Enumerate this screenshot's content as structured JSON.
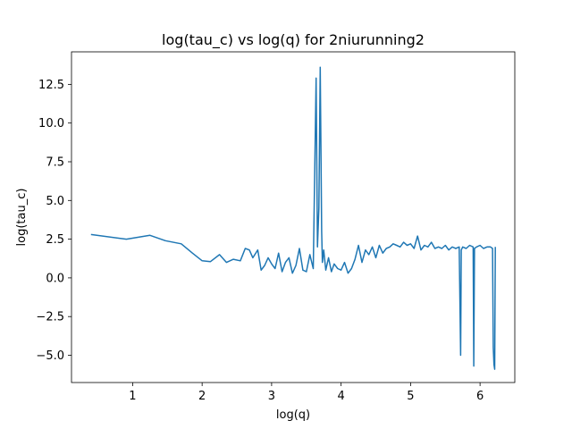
{
  "chart_data": {
    "type": "line",
    "title": "log(tau_c) vs log(q) for 2niurunning2",
    "xlabel": "log(q)",
    "ylabel": "log(tau_c)",
    "xlim": [
      0.12,
      6.5
    ],
    "ylim": [
      -6.76,
      14.6
    ],
    "xticks": [
      1,
      2,
      3,
      4,
      5,
      6
    ],
    "xtick_labels": [
      "1",
      "2",
      "3",
      "4",
      "5",
      "6"
    ],
    "yticks": [
      -5.0,
      -2.5,
      0.0,
      2.5,
      5.0,
      7.5,
      10.0,
      12.5
    ],
    "ytick_labels": [
      "−5.0",
      "−2.5",
      "0.0",
      "2.5",
      "5.0",
      "7.5",
      "10.0",
      "12.5"
    ],
    "grid": false,
    "legend": "none",
    "series": [
      {
        "color": "#1f77b4",
        "x": [
          0.4,
          0.91,
          1.25,
          1.47,
          1.7,
          1.86,
          2.0,
          2.12,
          2.25,
          2.35,
          2.45,
          2.55,
          2.62,
          2.68,
          2.73,
          2.8,
          2.85,
          2.9,
          2.95,
          3.0,
          3.05,
          3.1,
          3.15,
          3.2,
          3.25,
          3.3,
          3.35,
          3.4,
          3.45,
          3.5,
          3.55,
          3.6,
          3.64,
          3.66,
          3.68,
          3.7,
          3.72,
          3.73,
          3.75,
          3.78,
          3.82,
          3.86,
          3.9,
          3.95,
          4.0,
          4.05,
          4.1,
          4.15,
          4.2,
          4.25,
          4.3,
          4.35,
          4.4,
          4.45,
          4.5,
          4.55,
          4.6,
          4.65,
          4.7,
          4.75,
          4.8,
          4.85,
          4.9,
          4.95,
          5.0,
          5.05,
          5.1,
          5.15,
          5.2,
          5.25,
          5.3,
          5.35,
          5.4,
          5.45,
          5.5,
          5.55,
          5.6,
          5.65,
          5.7,
          5.72,
          5.73,
          5.75,
          5.8,
          5.85,
          5.9,
          5.91,
          5.92,
          5.95,
          6.0,
          6.05,
          6.1,
          6.15,
          6.18,
          6.19,
          6.2,
          6.21,
          6.22
        ],
        "y": [
          2.8,
          2.5,
          2.75,
          2.4,
          2.2,
          1.6,
          1.1,
          1.05,
          1.5,
          1.0,
          1.2,
          1.1,
          1.9,
          1.8,
          1.3,
          1.8,
          0.5,
          0.8,
          1.3,
          0.9,
          0.6,
          1.6,
          0.4,
          1.0,
          1.3,
          0.3,
          0.8,
          1.9,
          0.5,
          0.4,
          1.5,
          0.6,
          12.9,
          2.0,
          4.5,
          13.6,
          3.0,
          1.0,
          1.8,
          0.5,
          1.3,
          0.4,
          0.9,
          0.6,
          0.5,
          1.0,
          0.3,
          0.6,
          1.2,
          2.1,
          1.0,
          1.8,
          1.5,
          2.0,
          1.3,
          2.1,
          1.6,
          1.9,
          2.0,
          2.2,
          2.1,
          2.0,
          2.3,
          2.1,
          2.2,
          1.9,
          2.7,
          1.8,
          2.1,
          2.0,
          2.3,
          1.9,
          2.0,
          1.9,
          2.1,
          1.8,
          2.0,
          1.9,
          2.0,
          -5.0,
          1.8,
          2.0,
          1.9,
          2.1,
          2.0,
          -5.7,
          1.9,
          2.0,
          2.1,
          1.9,
          2.0,
          2.0,
          1.9,
          -4.5,
          -5.6,
          -5.9,
          2.0
        ]
      }
    ]
  }
}
